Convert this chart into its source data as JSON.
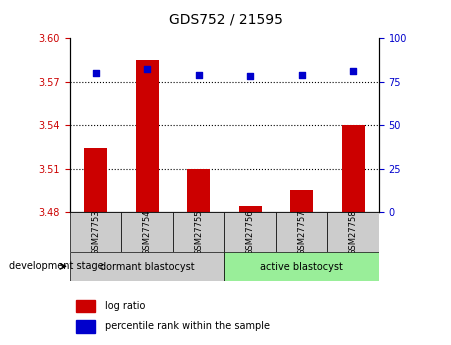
{
  "title": "GDS752 / 21595",
  "samples": [
    "GSM27753",
    "GSM27754",
    "GSM27755",
    "GSM27756",
    "GSM27757",
    "GSM27758"
  ],
  "log_ratio": [
    3.524,
    3.585,
    3.51,
    3.484,
    3.495,
    3.54
  ],
  "percentile_rank": [
    80,
    82,
    79,
    78,
    79,
    81
  ],
  "ylim_left": [
    3.48,
    3.6
  ],
  "yticks_left": [
    3.48,
    3.51,
    3.54,
    3.57,
    3.6
  ],
  "ylim_right": [
    0,
    100
  ],
  "yticks_right": [
    0,
    25,
    50,
    75,
    100
  ],
  "bar_color": "#cc0000",
  "dot_color": "#0000cc",
  "bar_baseline": 3.48,
  "group1_label": "dormant blastocyst",
  "group1_color": "#cccccc",
  "group1_indices": [
    0,
    1,
    2
  ],
  "group2_label": "active blastocyst",
  "group2_color": "#99ee99",
  "group2_indices": [
    3,
    4,
    5
  ],
  "stage_label": "development stage",
  "legend_bar_label": "log ratio",
  "legend_dot_label": "percentile rank within the sample",
  "grid_color": "#000000",
  "left_tick_color": "#cc0000",
  "right_tick_color": "#0000cc",
  "sample_box_color": "#cccccc"
}
